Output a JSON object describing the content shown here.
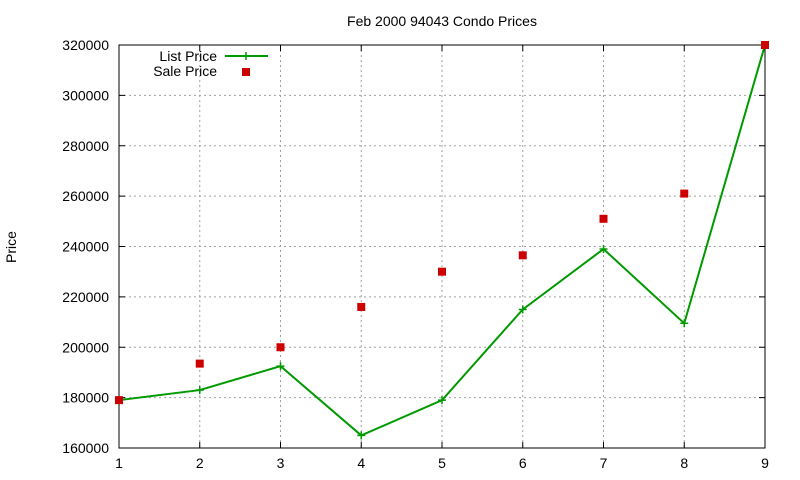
{
  "chart_data": {
    "type": "line",
    "title": "Feb 2000 94043 Condo Prices",
    "xlabel": "",
    "ylabel": "Price",
    "x": [
      1,
      2,
      3,
      4,
      5,
      6,
      7,
      8,
      9
    ],
    "xlim": [
      1,
      9
    ],
    "ylim": [
      160000,
      320000
    ],
    "xticks": [
      "1",
      "2",
      "3",
      "4",
      "5",
      "6",
      "7",
      "8",
      "9"
    ],
    "yticks": [
      "160000",
      "180000",
      "200000",
      "220000",
      "240000",
      "260000",
      "280000",
      "300000",
      "320000"
    ],
    "grid": true,
    "legend_position": "top-left",
    "series": [
      {
        "name": "List Price",
        "style": "lines-points",
        "marker": "plus",
        "color": "#009900",
        "values": [
          179000,
          183000,
          192500,
          165000,
          179000,
          215000,
          239000,
          209500,
          320000
        ]
      },
      {
        "name": "Sale Price",
        "style": "points",
        "marker": "square",
        "color": "#cc0000",
        "values": [
          179000,
          193500,
          200000,
          216000,
          230000,
          236500,
          251000,
          261000,
          320000
        ]
      }
    ]
  }
}
